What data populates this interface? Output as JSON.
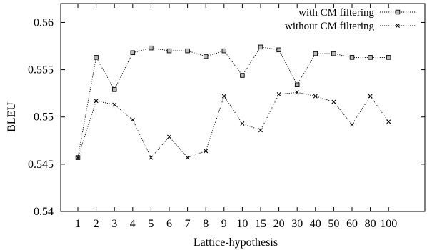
{
  "chart_data": {
    "type": "line",
    "xlabel": "Lattice-hypothesis",
    "ylabel": "BLEU",
    "categories": [
      "1",
      "2",
      "3",
      "4",
      "5",
      "6",
      "7",
      "8",
      "9",
      "10",
      "15",
      "20",
      "30",
      "40",
      "50",
      "60",
      "80",
      "100"
    ],
    "ylim": [
      0.54,
      0.562
    ],
    "yticks": [
      "0.54",
      "0.545",
      "0.55",
      "0.555",
      "0.56"
    ],
    "grid": false,
    "legend_position": "top-right",
    "series": [
      {
        "name": "with CM filtering",
        "marker": "square",
        "values": [
          0.5457,
          0.5563,
          0.5529,
          0.5568,
          0.5573,
          0.557,
          0.557,
          0.5564,
          0.557,
          0.5544,
          0.5574,
          0.5571,
          0.5534,
          0.5567,
          0.5567,
          0.5563,
          0.5563,
          0.5563
        ]
      },
      {
        "name": "without CM filtering",
        "marker": "x",
        "values": [
          0.5457,
          0.5517,
          0.5513,
          0.5497,
          0.5457,
          0.5479,
          0.5457,
          0.5464,
          0.5522,
          0.5493,
          0.5486,
          0.5524,
          0.5526,
          0.5522,
          0.5516,
          0.5492,
          0.5522,
          0.5495
        ]
      }
    ]
  }
}
